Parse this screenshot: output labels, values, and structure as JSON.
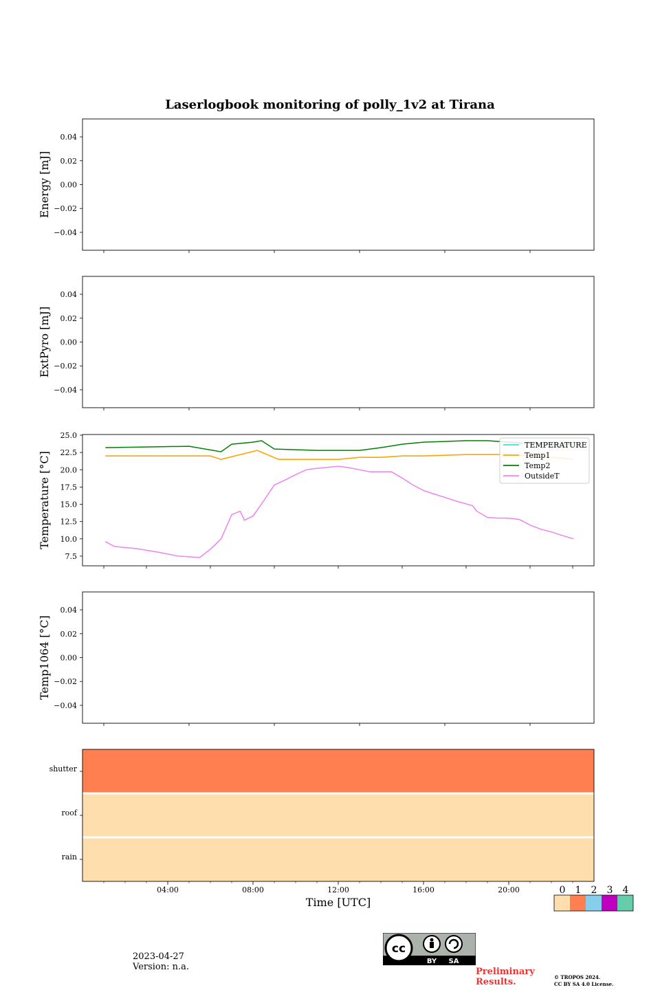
{
  "chart_data": [
    {
      "type": "line",
      "title": "Laserlogbook monitoring of polly_1v2 at Tirana",
      "ylabel": "Energy [mJ]",
      "ylim": [
        -0.055,
        0.055
      ],
      "yticks": [
        0.04,
        0.02,
        0.0,
        -0.02,
        -0.04
      ],
      "ytick_labels": [
        "0.04",
        "0.02",
        "0.00",
        "−0.02",
        "−0.04"
      ],
      "series": []
    },
    {
      "type": "line",
      "ylabel": "ExtPyro [mJ]",
      "ylim": [
        -0.055,
        0.055
      ],
      "yticks": [
        0.04,
        0.02,
        0.0,
        -0.02,
        -0.04
      ],
      "ytick_labels": [
        "0.04",
        "0.02",
        "0.00",
        "−0.02",
        "−0.04"
      ],
      "series": []
    },
    {
      "type": "line",
      "ylabel": "Temperature [°C]",
      "ylim": [
        6.1,
        25.1
      ],
      "yticks": [
        25.0,
        22.5,
        20.0,
        17.5,
        15.0,
        12.5,
        10.0,
        7.5
      ],
      "ytick_labels": [
        "25.0",
        "22.5",
        "20.0",
        "17.5",
        "15.0",
        "12.5",
        "10.0",
        "7.5"
      ],
      "xrange_hours": [
        1.07,
        23.05
      ],
      "legend": [
        "TEMPERATURE",
        "Temp1",
        "Temp2",
        "OutsideT"
      ],
      "legend_position": "top-right",
      "series": [
        {
          "name": "TEMPERATURE",
          "color": "#40e0d0",
          "x": [],
          "y": []
        },
        {
          "name": "Temp1",
          "color": "#ffa500",
          "x": [
            1.07,
            6.0,
            6.5,
            8.2,
            9.2,
            10.0,
            11.0,
            12.0,
            13.0,
            14.0,
            15.0,
            16.0,
            18.0,
            20.0,
            22.0,
            23.0
          ],
          "y": [
            22.0,
            22.0,
            21.5,
            22.8,
            21.5,
            21.5,
            21.5,
            21.5,
            21.8,
            21.8,
            22.0,
            22.0,
            22.2,
            22.2,
            21.8,
            21.5
          ]
        },
        {
          "name": "Temp2",
          "color": "#008000",
          "x": [
            1.07,
            3.0,
            5.0,
            6.5,
            7.0,
            8.0,
            8.4,
            9.0,
            11.0,
            13.0,
            14.0,
            15.0,
            16.0,
            17.0,
            18.0,
            19.0,
            20.0,
            21.0,
            22.0,
            23.0
          ],
          "y": [
            23.2,
            23.3,
            23.4,
            22.6,
            23.7,
            24.0,
            24.2,
            23.0,
            22.8,
            22.8,
            23.2,
            23.7,
            24.0,
            24.1,
            24.2,
            24.2,
            24.0,
            23.8,
            23.7,
            23.7
          ]
        },
        {
          "name": "OutsideT",
          "color": "#ee82ee",
          "x": [
            1.07,
            1.5,
            2.5,
            3.5,
            4.5,
            5.5,
            6.0,
            6.5,
            7.0,
            7.4,
            7.6,
            8.0,
            8.5,
            9.0,
            9.5,
            10.0,
            10.5,
            11.0,
            12.0,
            12.5,
            13.5,
            14.5,
            15.0,
            15.5,
            16.0,
            16.5,
            17.5,
            18.3,
            18.5,
            19.0,
            19.5,
            20.0,
            20.5,
            21.0,
            21.5,
            22.0,
            22.5,
            23.05
          ],
          "y": [
            9.6,
            8.9,
            8.6,
            8.1,
            7.5,
            7.3,
            8.5,
            10.0,
            13.5,
            14.0,
            12.7,
            13.3,
            15.5,
            17.8,
            18.5,
            19.3,
            20.0,
            20.2,
            20.5,
            20.3,
            19.7,
            19.7,
            18.8,
            17.8,
            17.0,
            16.5,
            15.5,
            14.8,
            14.0,
            13.1,
            13.0,
            13.0,
            12.8,
            12.0,
            11.4,
            11.0,
            10.5,
            10.0
          ]
        }
      ]
    },
    {
      "type": "line",
      "ylabel": "Temp1064 [°C]",
      "ylim": [
        -0.055,
        0.055
      ],
      "yticks": [
        0.04,
        0.02,
        0.0,
        -0.02,
        -0.04
      ],
      "ytick_labels": [
        "0.04",
        "0.02",
        "0.00",
        "−0.02",
        "−0.04"
      ],
      "series": []
    },
    {
      "type": "heatmap",
      "rows": [
        "shutter",
        "roof",
        "rain"
      ],
      "row_values": [
        1,
        0,
        0
      ],
      "xlabel": "Time [UTC]",
      "xlim_hours": [
        0,
        24
      ],
      "xticks_hours": [
        4,
        8,
        12,
        16,
        20
      ],
      "xtick_labels": [
        "04:00",
        "08:00",
        "12:00",
        "16:00",
        "20:00"
      ],
      "colorbar": {
        "ticks": [
          "0",
          "1",
          "2",
          "3",
          "4"
        ],
        "colors": [
          "#ffdead",
          "#ff7f50",
          "#87ceeb",
          "#c000c0",
          "#66cdaa"
        ]
      }
    }
  ],
  "footer": {
    "date": "2023-04-27",
    "version": "Version: n.a.",
    "preliminary": "Preliminary Results.",
    "copyright_line1": "© TROPOS 2024.",
    "copyright_line2": "CC BY SA 4.0 License.",
    "cc_label_by": "BY",
    "cc_label_sa": "SA",
    "cc_label_cc": "cc"
  }
}
